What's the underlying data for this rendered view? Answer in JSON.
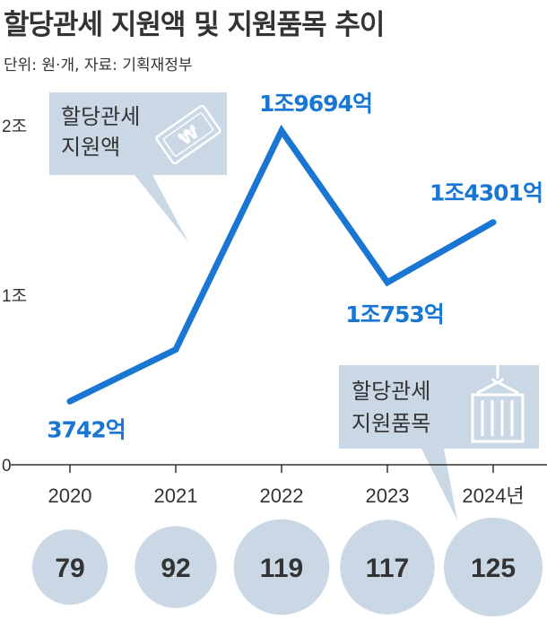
{
  "header": {
    "title": "할당관세 지원액 및 지원품목 추이",
    "subtitle": "단위: 원·개, 자료: 기획재정부"
  },
  "callouts": {
    "amount": [
      "할당관세",
      "지원액"
    ],
    "items": [
      "할당관세",
      "지원품목"
    ]
  },
  "colors": {
    "line": "#1976d2",
    "bubble": "#c9d8e4",
    "callout": "#c9d8e4",
    "axis": "#333333"
  },
  "chart_data": {
    "type": "line",
    "title": "할당관세 지원액 및 지원품목 추이",
    "x": [
      "2020",
      "2021",
      "2022",
      "2023",
      "2024년"
    ],
    "ylim": [
      0,
      20000
    ],
    "yticks": [
      {
        "value": 0,
        "label": "0"
      },
      {
        "value": 10000,
        "label": "1조"
      },
      {
        "value": 20000,
        "label": "2조"
      }
    ],
    "series": [
      {
        "values": [
          3742,
          6800,
          19694,
          10753,
          14301
        ],
        "labels": [
          "3742억",
          "",
          "1조9694억",
          "1조753억",
          "1조4301억"
        ]
      }
    ],
    "items_count": [
      79,
      92,
      119,
      117,
      125
    ]
  }
}
